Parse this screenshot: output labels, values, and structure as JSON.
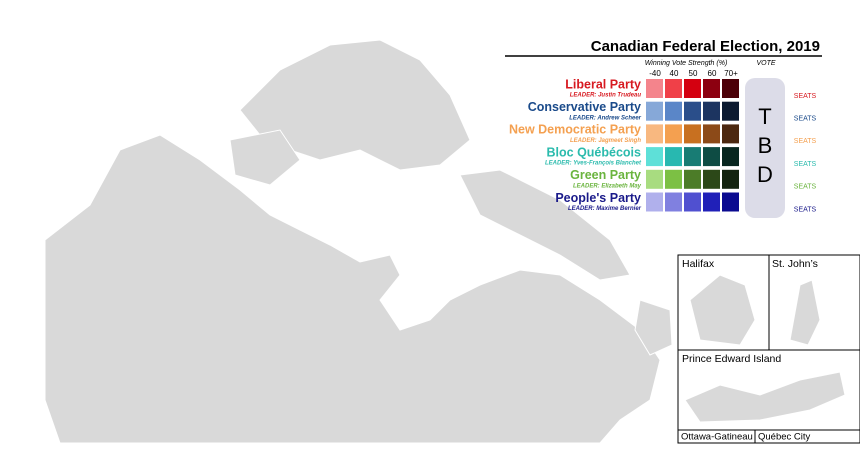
{
  "header": {
    "title": "Canadian Federal Election, 2019"
  },
  "legend": {
    "scale_title": "Winning Vote Strength (%)",
    "scale_labels": [
      "-40",
      "40",
      "50",
      "60",
      "70+"
    ],
    "vote_label": "VOTE",
    "tbd": [
      "T",
      "B",
      "D"
    ],
    "parties": [
      {
        "name": "Liberal Party",
        "leader": "LEADER: Justin Trudeau",
        "seats_label": "SEATS",
        "color": "#d71920",
        "shades": [
          "#f4848c",
          "#f04048",
          "#d40010",
          "#8c0010",
          "#4c0008"
        ]
      },
      {
        "name": "Conservative Party",
        "leader": "LEADER: Andrew Scheer",
        "seats_label": "SEATS",
        "color": "#1a4a8a",
        "shades": [
          "#86a8d8",
          "#5a86c8",
          "#2a4e8a",
          "#1c3460",
          "#0c1a30"
        ]
      },
      {
        "name": "New Democratic Party",
        "leader": "LEADER: Jagmeet Singh",
        "seats_label": "SEATS",
        "color": "#f4a050",
        "shades": [
          "#f8b880",
          "#f4a050",
          "#c87020",
          "#8c4a18",
          "#4c2810"
        ]
      },
      {
        "name": "Bloc Québécois",
        "leader": "LEADER: Yves-François Blanchet",
        "seats_label": "SEATS",
        "color": "#2bbbad",
        "shades": [
          "#5ee0d8",
          "#28b8b0",
          "#187c74",
          "#0e4c44",
          "#08261f"
        ]
      },
      {
        "name": "Green Party",
        "leader": "LEADER: Elizabeth May",
        "seats_label": "SEATS",
        "color": "#6ab43e",
        "shades": [
          "#a8dc80",
          "#7cc044",
          "#4c7c28",
          "#2c4818",
          "#142410"
        ]
      },
      {
        "name": "People's Party",
        "leader": "LEADER: Maxime Bernier",
        "seats_label": "SEATS",
        "color": "#1a1a8a",
        "shades": [
          "#b0b0ec",
          "#8080e0",
          "#5050d0",
          "#2020b8",
          "#0a0a90"
        ]
      }
    ]
  },
  "insets": [
    "Halifax",
    "St. John’s",
    "Prince Edward Island",
    "Ottawa-Gatineau",
    "Québec City"
  ]
}
